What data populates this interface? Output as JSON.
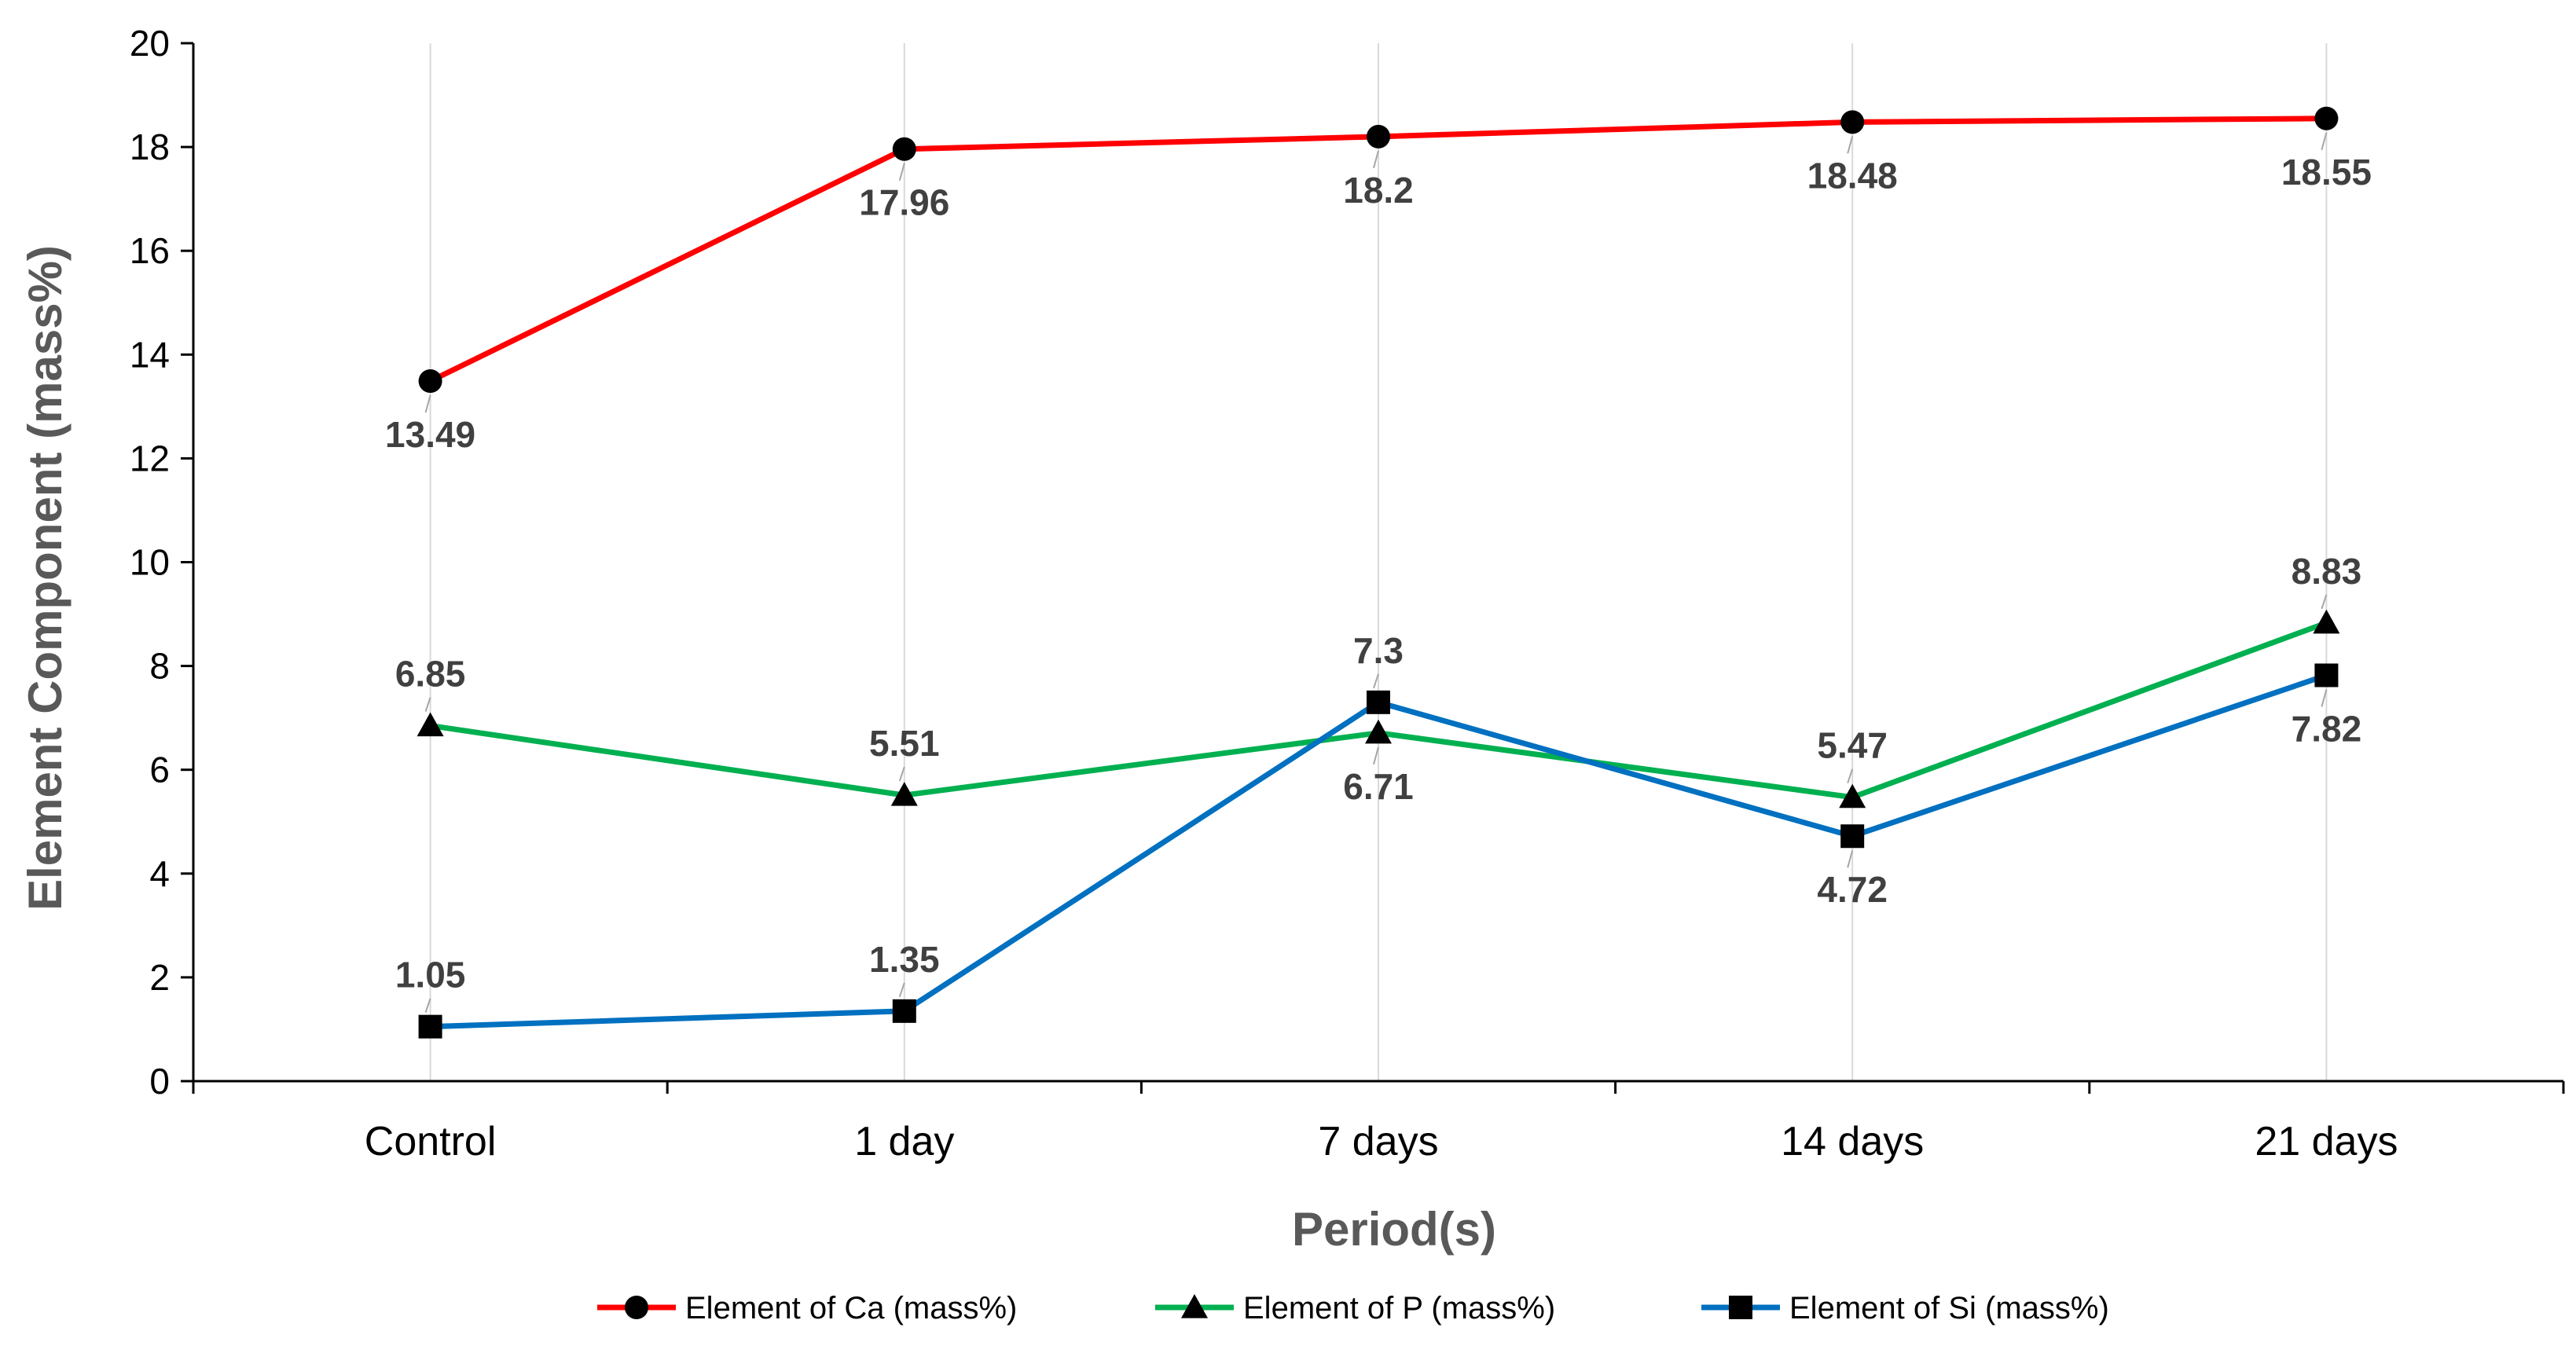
{
  "chart_data": {
    "type": "line",
    "title": "",
    "xlabel": "Period(s)",
    "ylabel": "Element Component  (mass%)",
    "ylim": [
      0,
      20
    ],
    "yticks": [
      0,
      2,
      4,
      6,
      8,
      10,
      12,
      14,
      16,
      18,
      20
    ],
    "categories": [
      "Control",
      "1 day",
      "7 days",
      "14 days",
      "21 days"
    ],
    "grid": "vertical",
    "legend_position": "bottom",
    "series": [
      {
        "name": "Element of  Ca (mass%)",
        "color": "#FF0000",
        "marker": "circle",
        "values": [
          13.49,
          17.96,
          18.2,
          18.48,
          18.55
        ],
        "label_position": [
          "below",
          "below",
          "below",
          "below",
          "below"
        ]
      },
      {
        "name": "Element  of  P (mass%)",
        "color": "#00B050",
        "marker": "triangle",
        "values": [
          6.85,
          5.51,
          6.71,
          5.47,
          8.83
        ],
        "label_position": [
          "above",
          "above",
          "below",
          "above",
          "above"
        ]
      },
      {
        "name": "Element  of  Si (mass%)",
        "color": "#0070C0",
        "marker": "square",
        "values": [
          1.05,
          1.35,
          7.3,
          4.72,
          7.82
        ],
        "label_position": [
          "above",
          "above",
          "above",
          "below",
          "below"
        ]
      }
    ]
  }
}
